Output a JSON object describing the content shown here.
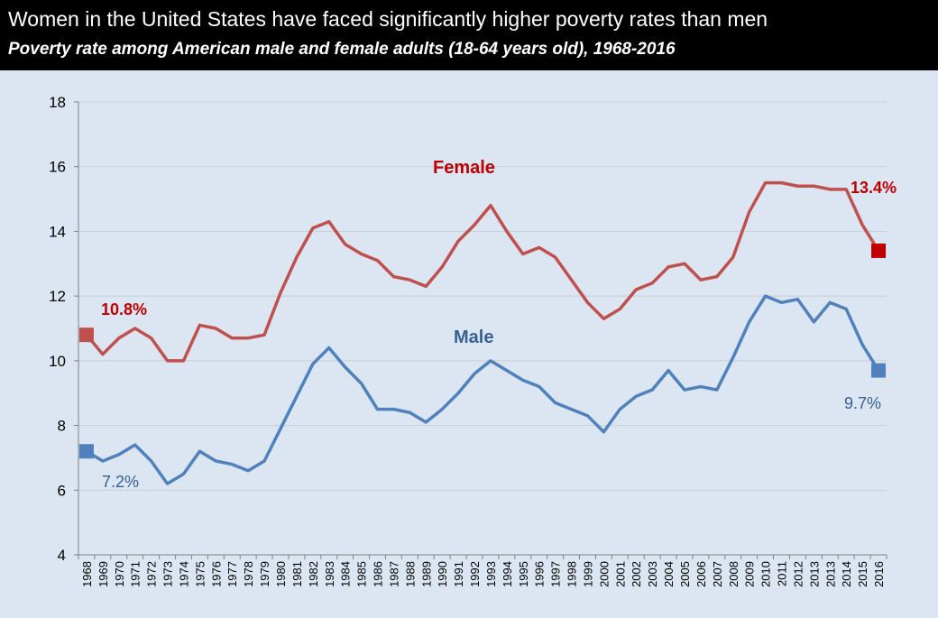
{
  "header": {
    "title": "Women in the United States have faced significantly higher poverty rates than men",
    "subtitle": "Poverty rate among American male and female adults (18-64 years old), 1968-2016"
  },
  "chart_data": {
    "type": "line",
    "title": "Women in the United States have faced significantly higher poverty rates than men",
    "subtitle": "Poverty rate among American male and female adults (18-64 years old), 1968-2016",
    "xlabel": "",
    "ylabel": "",
    "ylim": [
      4,
      18
    ],
    "yticks": [
      4,
      6,
      8,
      10,
      12,
      14,
      16,
      18
    ],
    "grid": true,
    "legend": "inline labels",
    "categories": [
      "1968",
      "1969",
      "1970",
      "1971",
      "1972",
      "1973",
      "1974",
      "1975",
      "1976",
      "1977",
      "1978",
      "1979",
      "1980",
      "1981",
      "1982",
      "1983",
      "1984",
      "1985",
      "1986",
      "1987",
      "1988",
      "1989",
      "1990",
      "1991",
      "1992",
      "1993",
      "1994",
      "1995",
      "1996",
      "1997",
      "1998",
      "1999",
      "2000",
      "2001",
      "2002",
      "2003",
      "2004",
      "2005",
      "2006",
      "2007",
      "2008",
      "2009",
      "2010",
      "2011",
      "2012",
      "2013",
      "2013",
      "2014",
      "2015",
      "2016"
    ],
    "series": [
      {
        "name": "Female",
        "color": "#c0504d",
        "marker_color": "#c00000",
        "label_color": "#c00000",
        "values": [
          10.8,
          10.2,
          10.7,
          11.0,
          10.7,
          10.0,
          10.0,
          11.1,
          11.0,
          10.7,
          10.7,
          10.8,
          12.1,
          13.2,
          14.1,
          14.3,
          13.6,
          13.3,
          13.1,
          12.6,
          12.5,
          12.3,
          12.9,
          13.7,
          14.2,
          14.8,
          14.0,
          13.3,
          13.5,
          13.2,
          12.5,
          11.8,
          11.3,
          11.6,
          12.2,
          12.4,
          12.9,
          13.0,
          12.5,
          12.6,
          13.2,
          14.6,
          15.5,
          15.5,
          15.4,
          15.4,
          15.3,
          15.3,
          14.2,
          13.4
        ],
        "start_label": "10.8%",
        "end_label": "13.4%"
      },
      {
        "name": "Male",
        "color": "#4f81bd",
        "marker_color": "#4f81bd",
        "label_color": "#376092",
        "values": [
          7.2,
          6.9,
          7.1,
          7.4,
          6.9,
          6.2,
          6.5,
          7.2,
          6.9,
          6.8,
          6.6,
          6.9,
          7.9,
          8.9,
          9.9,
          10.4,
          9.8,
          9.3,
          8.5,
          8.5,
          8.4,
          8.1,
          8.5,
          9.0,
          9.6,
          10.0,
          9.7,
          9.4,
          9.2,
          8.7,
          8.5,
          8.3,
          7.8,
          8.5,
          8.9,
          9.1,
          9.7,
          9.1,
          9.2,
          9.1,
          10.1,
          11.2,
          12.0,
          11.8,
          11.9,
          11.2,
          11.8,
          11.6,
          10.5,
          9.7
        ],
        "start_label": "7.2%",
        "end_label": "9.7%"
      }
    ]
  }
}
